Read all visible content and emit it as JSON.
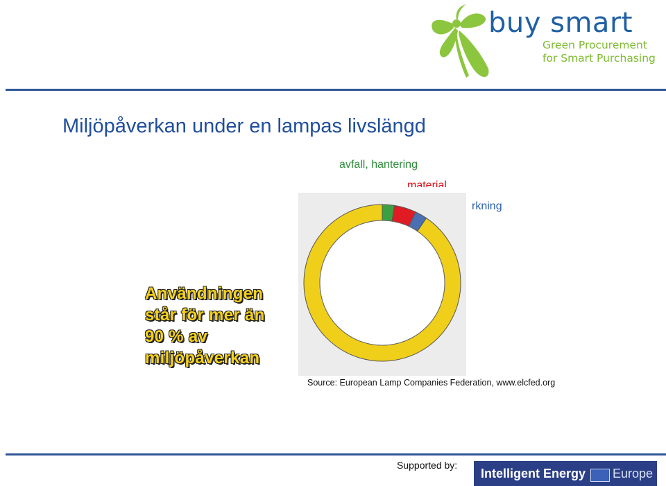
{
  "header": {
    "brand_name": "buy smart",
    "brand_tagline": [
      "Green Procurement",
      "for Smart Purchasing"
    ]
  },
  "slide": {
    "title": "Miljöpåverkan under en lampas livslängd",
    "callout_lines": [
      "Användningen",
      "står för mer än",
      "90 % av",
      "miljöpåverkan"
    ],
    "source": "Source: European Lamp Companies Federation, www.elcfed.org"
  },
  "chart_data": {
    "type": "pie",
    "donut": true,
    "categories": [
      "användning",
      "avfall, hantering",
      "material",
      "tillverkning"
    ],
    "labels_shown": [
      "avfall, hantering",
      "material",
      "tillverkning"
    ],
    "values": [
      90.5,
      2.5,
      4.5,
      2.5
    ],
    "colors": [
      "#f0cf1a",
      "#3aa040",
      "#e01b24",
      "#4a6fb2"
    ],
    "start": "top",
    "title": ""
  },
  "footer": {
    "supported_by": "Supported by:",
    "program_name": "Intelligent Energy",
    "program_region": "Europe"
  },
  "colors": {
    "brand_blue": "#1f5fa6",
    "brand_green": "#7dba2f",
    "rule_blue": "#2f5597",
    "title_blue": "#1f4e9c",
    "callout_yellow": "#f5d11a"
  }
}
